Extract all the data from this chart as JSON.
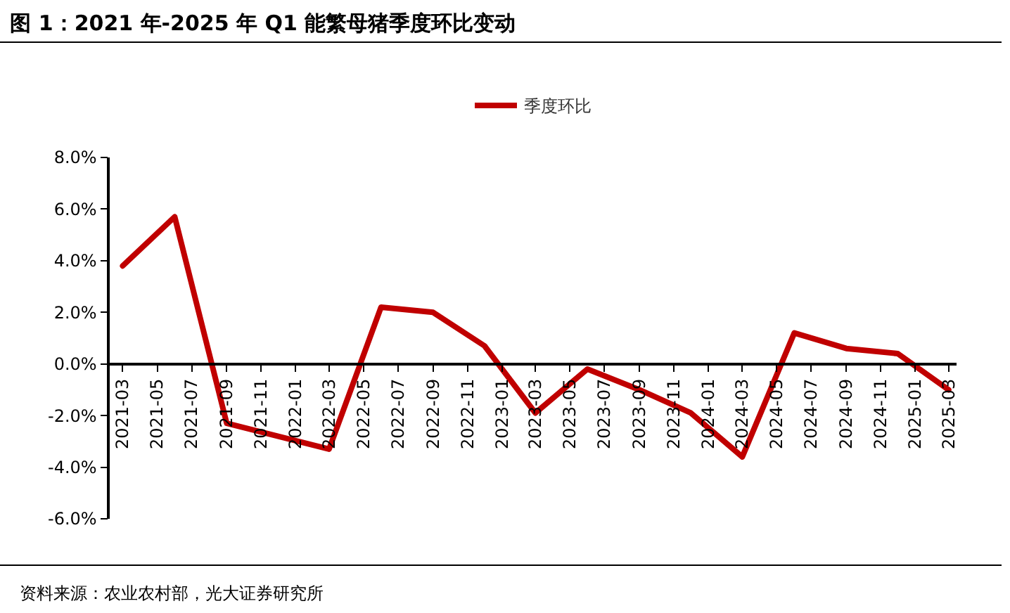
{
  "chart_data": {
    "type": "line",
    "title": "图 1：2021 年-2025 年 Q1 能繁母猪季度环比变动",
    "x": [
      "2021-03",
      "2021-06",
      "2021-09",
      "2021-12",
      "2022-03",
      "2022-06",
      "2022-09",
      "2022-12",
      "2023-03",
      "2023-06",
      "2023-09",
      "2023-12",
      "2024-03",
      "2024-06",
      "2024-09",
      "2024-12",
      "2025-03"
    ],
    "series": [
      {
        "name": "季度环比",
        "color": "#c00000",
        "values": [
          3.8,
          5.7,
          -2.3,
          -2.8,
          -3.3,
          2.2,
          2.0,
          0.7,
          -1.9,
          -0.2,
          -1.0,
          -1.9,
          -3.6,
          1.2,
          0.6,
          0.4,
          -1.0
        ]
      }
    ],
    "xlim": [
      "2021-02-06",
      "2025-03-15"
    ],
    "xticks": [
      "2021-03",
      "2021-05",
      "2021-07",
      "2021-09",
      "2021-11",
      "2022-01",
      "2022-03",
      "2022-05",
      "2022-07",
      "2022-09",
      "2022-11",
      "2023-01",
      "2023-03",
      "2023-05",
      "2023-07",
      "2023-09",
      "2023-11",
      "2024-01",
      "2024-03",
      "2024-05",
      "2024-07",
      "2024-09",
      "2024-11",
      "2025-01",
      "2025-03"
    ],
    "ylim": [
      -6,
      8
    ],
    "yticks": [
      {
        "value": -6,
        "label": "-6.0%"
      },
      {
        "value": -4,
        "label": "-4.0%"
      },
      {
        "value": -2,
        "label": "-2.0%"
      },
      {
        "value": 0,
        "label": "0.0%"
      },
      {
        "value": 2,
        "label": "2.0%"
      },
      {
        "value": 4,
        "label": "4.0%"
      },
      {
        "value": 6,
        "label": "6.0%"
      },
      {
        "value": 8,
        "label": "8.0%"
      }
    ],
    "grid": false,
    "legend": "top",
    "marker": "none",
    "line_style": "solid",
    "annotations": [
      "资料来源：农业农村部，光大证券研究所"
    ]
  }
}
